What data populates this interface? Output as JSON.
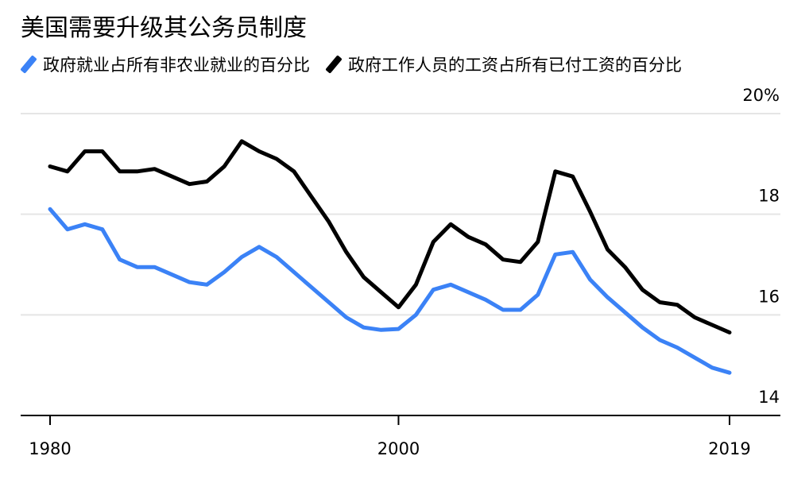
{
  "chart_data": {
    "type": "line",
    "title": "美国需要升级其公务员制度",
    "x_ticks": [
      1980,
      2000,
      2019
    ],
    "y_ticks": [
      14,
      16,
      18,
      20
    ],
    "y_tick_labels": [
      "14",
      "16",
      "18",
      "20%"
    ],
    "xlim": [
      1980,
      2019
    ],
    "ylim": [
      14,
      20
    ],
    "grid": "horizontal",
    "legend_position": "top-left",
    "x": [
      1980,
      1981,
      1982,
      1983,
      1984,
      1985,
      1986,
      1987,
      1988,
      1989,
      1990,
      1991,
      1992,
      1993,
      1994,
      1995,
      1996,
      1997,
      1998,
      1999,
      2000,
      2001,
      2002,
      2003,
      2004,
      2005,
      2006,
      2007,
      2008,
      2009,
      2010,
      2011,
      2012,
      2013,
      2014,
      2015,
      2016,
      2017,
      2018,
      2019
    ],
    "series": [
      {
        "name": "政府就业占所有非农业就业的百分比",
        "color": "#3b82f6",
        "values": [
          18.1,
          17.7,
          17.8,
          17.7,
          17.1,
          16.95,
          16.95,
          16.8,
          16.65,
          16.6,
          16.85,
          17.15,
          17.35,
          17.15,
          16.85,
          16.55,
          16.25,
          15.95,
          15.75,
          15.7,
          15.72,
          16.0,
          16.5,
          16.6,
          16.45,
          16.3,
          16.1,
          16.1,
          16.4,
          17.2,
          17.25,
          16.7,
          16.35,
          16.05,
          15.75,
          15.5,
          15.35,
          15.15,
          14.95,
          14.85
        ]
      },
      {
        "name": "政府工作人员的工资占所有已付工资的百分比",
        "color": "#000000",
        "values": [
          18.95,
          18.85,
          19.25,
          19.25,
          18.85,
          18.85,
          18.9,
          18.75,
          18.6,
          18.65,
          18.95,
          19.45,
          19.25,
          19.1,
          18.85,
          18.35,
          17.85,
          17.25,
          16.75,
          16.45,
          16.15,
          16.6,
          17.45,
          17.8,
          17.55,
          17.4,
          17.1,
          17.05,
          17.45,
          18.85,
          18.75,
          18.05,
          17.3,
          16.95,
          16.5,
          16.25,
          16.2,
          15.95,
          15.8,
          15.65
        ]
      }
    ]
  },
  "colors": {
    "grid": "#e5e5e5",
    "axis": "#000000"
  }
}
